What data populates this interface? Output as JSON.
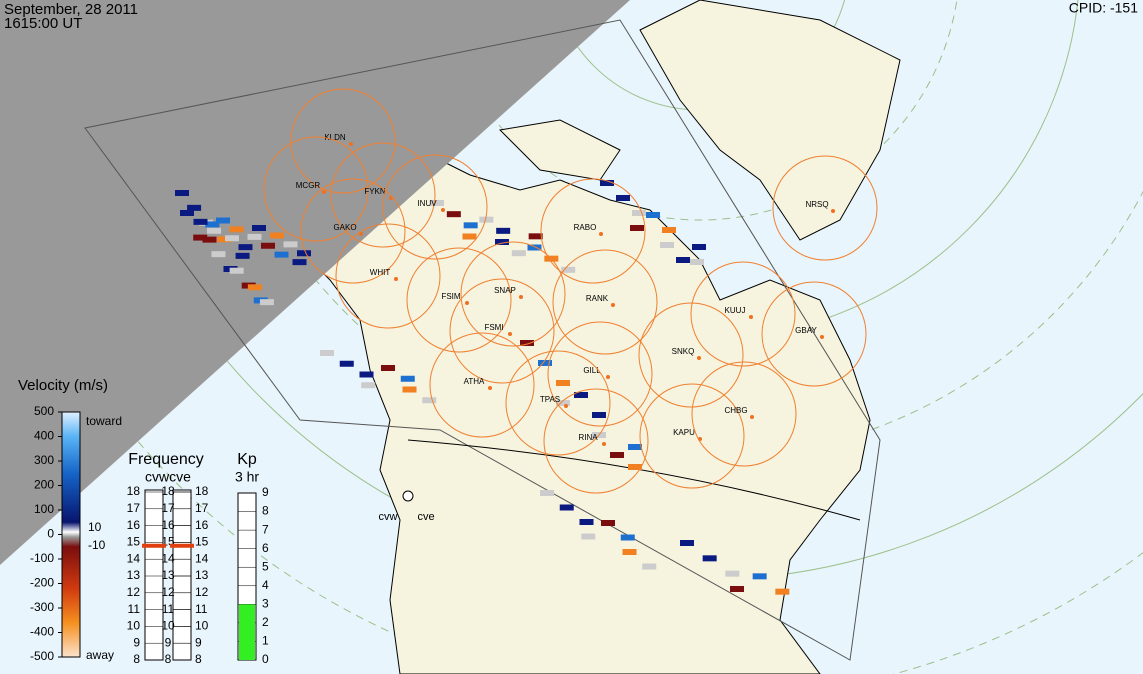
{
  "header": {
    "date": "September, 28 2011",
    "time": "1615:00 UT",
    "cpid": "CPID:  -151"
  },
  "stations": [
    "KLDN",
    "MCGR",
    "FYKN",
    "INUV",
    "GAKO",
    "WHIT",
    "FSIM",
    "SNAP",
    "FSMI",
    "RANK",
    "RABO",
    "KUUJ",
    "GBAY",
    "SNKQ",
    "NRSQ",
    "ATHA",
    "GILL",
    "TPAS",
    "RINA",
    "KAPU",
    "CHBG"
  ],
  "radars": [
    "cvw",
    "cve"
  ],
  "velocity_scale": {
    "title": "Velocity (m/s)",
    "ticks": [
      500,
      400,
      300,
      200,
      100,
      0,
      -100,
      -200,
      -300,
      -400,
      -500
    ],
    "toward": "toward",
    "away": "away",
    "zero_upper": "10",
    "zero_lower": "-10"
  },
  "frequency": {
    "title": "Frequency",
    "radar_labels": "cvwcve",
    "ticks": [
      18,
      17,
      16,
      15,
      14,
      13,
      12,
      11,
      10,
      9,
      8
    ],
    "range": [
      8,
      18
    ],
    "values": [
      14.8,
      14.8
    ]
  },
  "kp": {
    "title": "Kp",
    "subtitle": "3 hr",
    "ticks": [
      9,
      8,
      7,
      6,
      5,
      4,
      3,
      2,
      1,
      0
    ],
    "range": [
      0,
      9
    ],
    "value": 3
  }
}
